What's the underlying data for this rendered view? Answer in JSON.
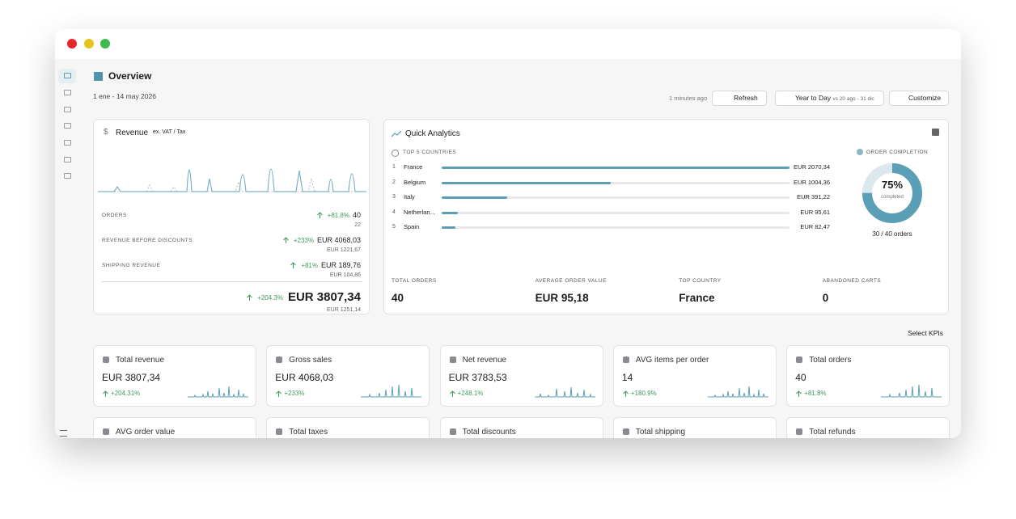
{
  "header": {
    "title": "Overview",
    "date_range": "1 ene - 14 may 2026",
    "updated": "1 minutes ago",
    "refresh": "Refresh",
    "period": "Year to Day",
    "comparison": "vs 20 ago - 31 dic",
    "customize": "Customize"
  },
  "revenue": {
    "title": "Revenue",
    "note": "ex. VAT / Tax",
    "metrics": [
      {
        "label": "ORDERS",
        "change": "+81.8%",
        "value": "40",
        "previous": "22"
      },
      {
        "label": "REVENUE BEFORE DISCOUNTS",
        "change": "+233%",
        "value": "EUR 4068,03",
        "previous": "EUR 1221,67"
      },
      {
        "label": "SHIPPING REVENUE",
        "change": "+81%",
        "value": "EUR 189,76",
        "previous": "EUR 104,86"
      }
    ],
    "total": {
      "change": "+204.3%",
      "value": "EUR 3807,34",
      "previous": "EUR 1251,14"
    }
  },
  "quick_analytics": {
    "title": "Quick Analytics",
    "countries_title": "TOP 5 COUNTRIES",
    "countries": [
      {
        "rank": 1,
        "name": "France",
        "value": 2070.34,
        "value_label": "EUR 2070,34"
      },
      {
        "rank": 2,
        "name": "Belgium",
        "value": 1004.36,
        "value_label": "EUR 1004,36"
      },
      {
        "rank": 3,
        "name": "Italy",
        "value": 391.22,
        "value_label": "EUR 391,22"
      },
      {
        "rank": 4,
        "name": "Netherlan…",
        "value": 95.61,
        "value_label": "EUR 95,61"
      },
      {
        "rank": 5,
        "name": "Spain",
        "value": 82.47,
        "value_label": "EUR 82,47"
      }
    ],
    "completion": {
      "title": "ORDER COMPLETION",
      "value": 75,
      "value_label": "75%",
      "caption": "completed",
      "detail": "30 / 40 orders"
    },
    "stats": [
      {
        "label": "TOTAL ORDERS",
        "value": "40"
      },
      {
        "label": "AVERAGE ORDER VALUE",
        "value": "EUR 95,18"
      },
      {
        "label": "TOP COUNTRY",
        "value": "France"
      },
      {
        "label": "ABANDONED CARTS",
        "value": "0"
      }
    ]
  },
  "kpis": {
    "select": "Select KPIs",
    "cards": [
      {
        "title": "Total revenue",
        "value": "EUR 3807,34",
        "change": "+204.31%"
      },
      {
        "title": "Gross sales",
        "value": "EUR 4068,03",
        "change": "+233%"
      },
      {
        "title": "Net revenue",
        "value": "EUR 3783,53",
        "change": "+248.1%"
      },
      {
        "title": "AVG items per order",
        "value": "14",
        "change": "+180.9%"
      },
      {
        "title": "Total orders",
        "value": "40",
        "change": "+81.8%"
      },
      {
        "title": "AVG order value"
      },
      {
        "title": "Total taxes"
      },
      {
        "title": "Total discounts"
      },
      {
        "title": "Total shipping"
      },
      {
        "title": "Total refunds"
      }
    ]
  }
}
